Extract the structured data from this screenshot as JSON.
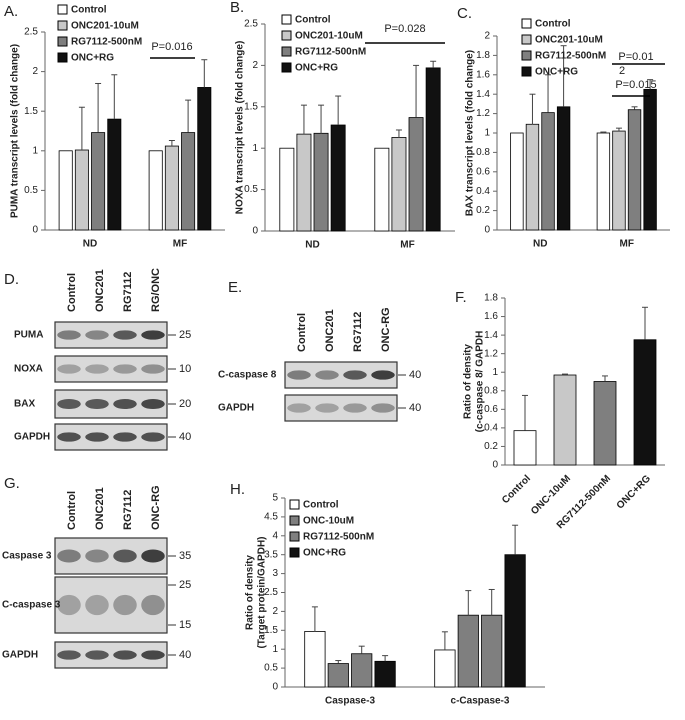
{
  "chart_data": [
    {
      "type": "bar",
      "panel": "A.",
      "ylabel": [
        "PUMA transcript levels (fold change)"
      ],
      "categories": [
        "ND",
        "MF"
      ],
      "series": [
        {
          "name": "Control",
          "color": "#ffffff",
          "values": [
            1.0,
            1.0
          ],
          "errors": [
            null,
            null
          ]
        },
        {
          "name": "ONC201-10uM",
          "color": "#c8c8c8",
          "values": [
            1.01,
            1.06
          ],
          "errors": [
            0.54,
            0.07
          ]
        },
        {
          "name": "RG7112-500nM",
          "color": "#7f7f7f",
          "values": [
            1.23,
            1.23
          ],
          "errors": [
            0.62,
            0.41
          ]
        },
        {
          "name": "ONC+RG",
          "color": "#111111",
          "values": [
            1.4,
            1.8
          ],
          "errors": [
            0.56,
            0.35
          ]
        }
      ],
      "ylim": [
        0,
        2.5
      ],
      "yticks": [
        0,
        0.5,
        1,
        1.5,
        2,
        2.5
      ],
      "annotations": [
        "P=0.016"
      ]
    },
    {
      "type": "bar",
      "panel": "B.",
      "ylabel": [
        "NOXA transcript levels (fold change)"
      ],
      "categories": [
        "ND",
        "MF"
      ],
      "series": [
        {
          "name": "Control",
          "color": "#ffffff",
          "values": [
            1.0,
            1.0
          ],
          "errors": [
            null,
            null
          ]
        },
        {
          "name": "ONC201-10uM",
          "color": "#c8c8c8",
          "values": [
            1.17,
            1.13
          ],
          "errors": [
            0.35,
            0.09
          ]
        },
        {
          "name": "RG7112-500nM",
          "color": "#7f7f7f",
          "values": [
            1.18,
            1.37
          ],
          "errors": [
            0.34,
            0.63
          ]
        },
        {
          "name": "ONC+RG",
          "color": "#111111",
          "values": [
            1.28,
            1.97
          ],
          "errors": [
            0.35,
            0.08
          ]
        }
      ],
      "ylim": [
        0,
        2.5
      ],
      "yticks": [
        0,
        0.5,
        1,
        1.5,
        2,
        2.5
      ],
      "annotations": [
        "P=0.028"
      ]
    },
    {
      "type": "bar",
      "panel": "C.",
      "ylabel": [
        "BAX transcript levels (fold change)"
      ],
      "categories": [
        "ND",
        "MF"
      ],
      "series": [
        {
          "name": "Control",
          "color": "#ffffff",
          "values": [
            1.0,
            1.0
          ],
          "errors": [
            null,
            0.01
          ]
        },
        {
          "name": "ONC201-10uM",
          "color": "#c8c8c8",
          "values": [
            1.09,
            1.02
          ],
          "errors": [
            0.31,
            0.03
          ]
        },
        {
          "name": "RG7112-500nM",
          "color": "#7f7f7f",
          "values": [
            1.21,
            1.24
          ],
          "errors": [
            0.39,
            0.03
          ]
        },
        {
          "name": "ONC+RG",
          "color": "#111111",
          "values": [
            1.27,
            1.45
          ],
          "errors": [
            0.63,
            0.1
          ]
        }
      ],
      "ylim": [
        0,
        2
      ],
      "yticks": [
        0,
        0.2,
        0.4,
        0.6,
        0.8,
        1,
        1.2,
        1.4,
        1.6,
        1.8,
        2
      ],
      "annotations": [
        "P=0.01",
        "2",
        "P=0.015"
      ]
    },
    {
      "type": "bar",
      "panel": "F.",
      "ylabel": [
        "Ratio of density",
        "(c-caspase 8/ GAPDH"
      ],
      "categories": [
        "Control",
        "ONC-10uM",
        "RG7112-500nM",
        "ONC+RG"
      ],
      "values": [
        0.37,
        0.97,
        0.9,
        1.35
      ],
      "errors": [
        0.38,
        0.01,
        0.06,
        0.35
      ],
      "colors": [
        "#ffffff",
        "#c8c8c8",
        "#7f7f7f",
        "#111111"
      ],
      "ylim": [
        0,
        1.8
      ],
      "yticks": [
        0,
        0.2,
        0.4,
        0.6,
        0.8,
        1,
        1.2,
        1.4,
        1.6,
        1.8
      ]
    },
    {
      "type": "bar",
      "panel": "H.",
      "ylabel": [
        "Ratio of density",
        "(Target protein/GAPDH)"
      ],
      "categories": [
        "Caspase-3",
        "c-Caspase-3"
      ],
      "series": [
        {
          "name": "Control",
          "color": "#ffffff",
          "values": [
            1.47,
            0.98
          ],
          "errors": [
            0.65,
            0.48
          ]
        },
        {
          "name": "ONC-10uM",
          "color": "#7f7f7f",
          "values": [
            0.62,
            1.9
          ],
          "errors": [
            0.08,
            0.65
          ]
        },
        {
          "name": "RG7112-500nM",
          "color": "#7f7f7f",
          "values": [
            0.88,
            1.9
          ],
          "errors": [
            0.2,
            0.68
          ]
        },
        {
          "name": "ONC+RG",
          "color": "#111111",
          "values": [
            0.68,
            3.5
          ],
          "errors": [
            0.15,
            0.78
          ]
        }
      ],
      "ylim": [
        0,
        5
      ],
      "yticks": [
        0,
        0.5,
        1,
        1.5,
        2,
        2.5,
        3,
        3.5,
        4,
        4.5,
        5
      ]
    }
  ],
  "blots": [
    {
      "panel": "D.",
      "lanes": [
        "Control",
        "ONC201",
        "RG7112",
        "RG/ONC"
      ],
      "rows": [
        {
          "label": "PUMA",
          "markers": [
            "25"
          ]
        },
        {
          "label": "NOXA",
          "markers": [
            "10"
          ]
        },
        {
          "label": "BAX",
          "markers": [
            "20"
          ]
        },
        {
          "label": "GAPDH",
          "markers": [
            "40"
          ]
        }
      ]
    },
    {
      "panel": "E.",
      "lanes": [
        "Control",
        "ONC201",
        "RG7112",
        "ONC-RG"
      ],
      "rows": [
        {
          "label": "C-caspase 8",
          "markers": [
            "40"
          ]
        },
        {
          "label": "GAPDH",
          "markers": [
            "40"
          ]
        }
      ]
    },
    {
      "panel": "G.",
      "lanes": [
        "Control",
        "ONC201",
        "RG7112",
        "ONC-RG"
      ],
      "rows": [
        {
          "label": "Caspase 3",
          "markers": [
            "35"
          ]
        },
        {
          "label": "C-caspase 3",
          "markers": [
            "25",
            "15"
          ]
        },
        {
          "label": "GAPDH",
          "markers": [
            "40"
          ]
        }
      ]
    }
  ]
}
